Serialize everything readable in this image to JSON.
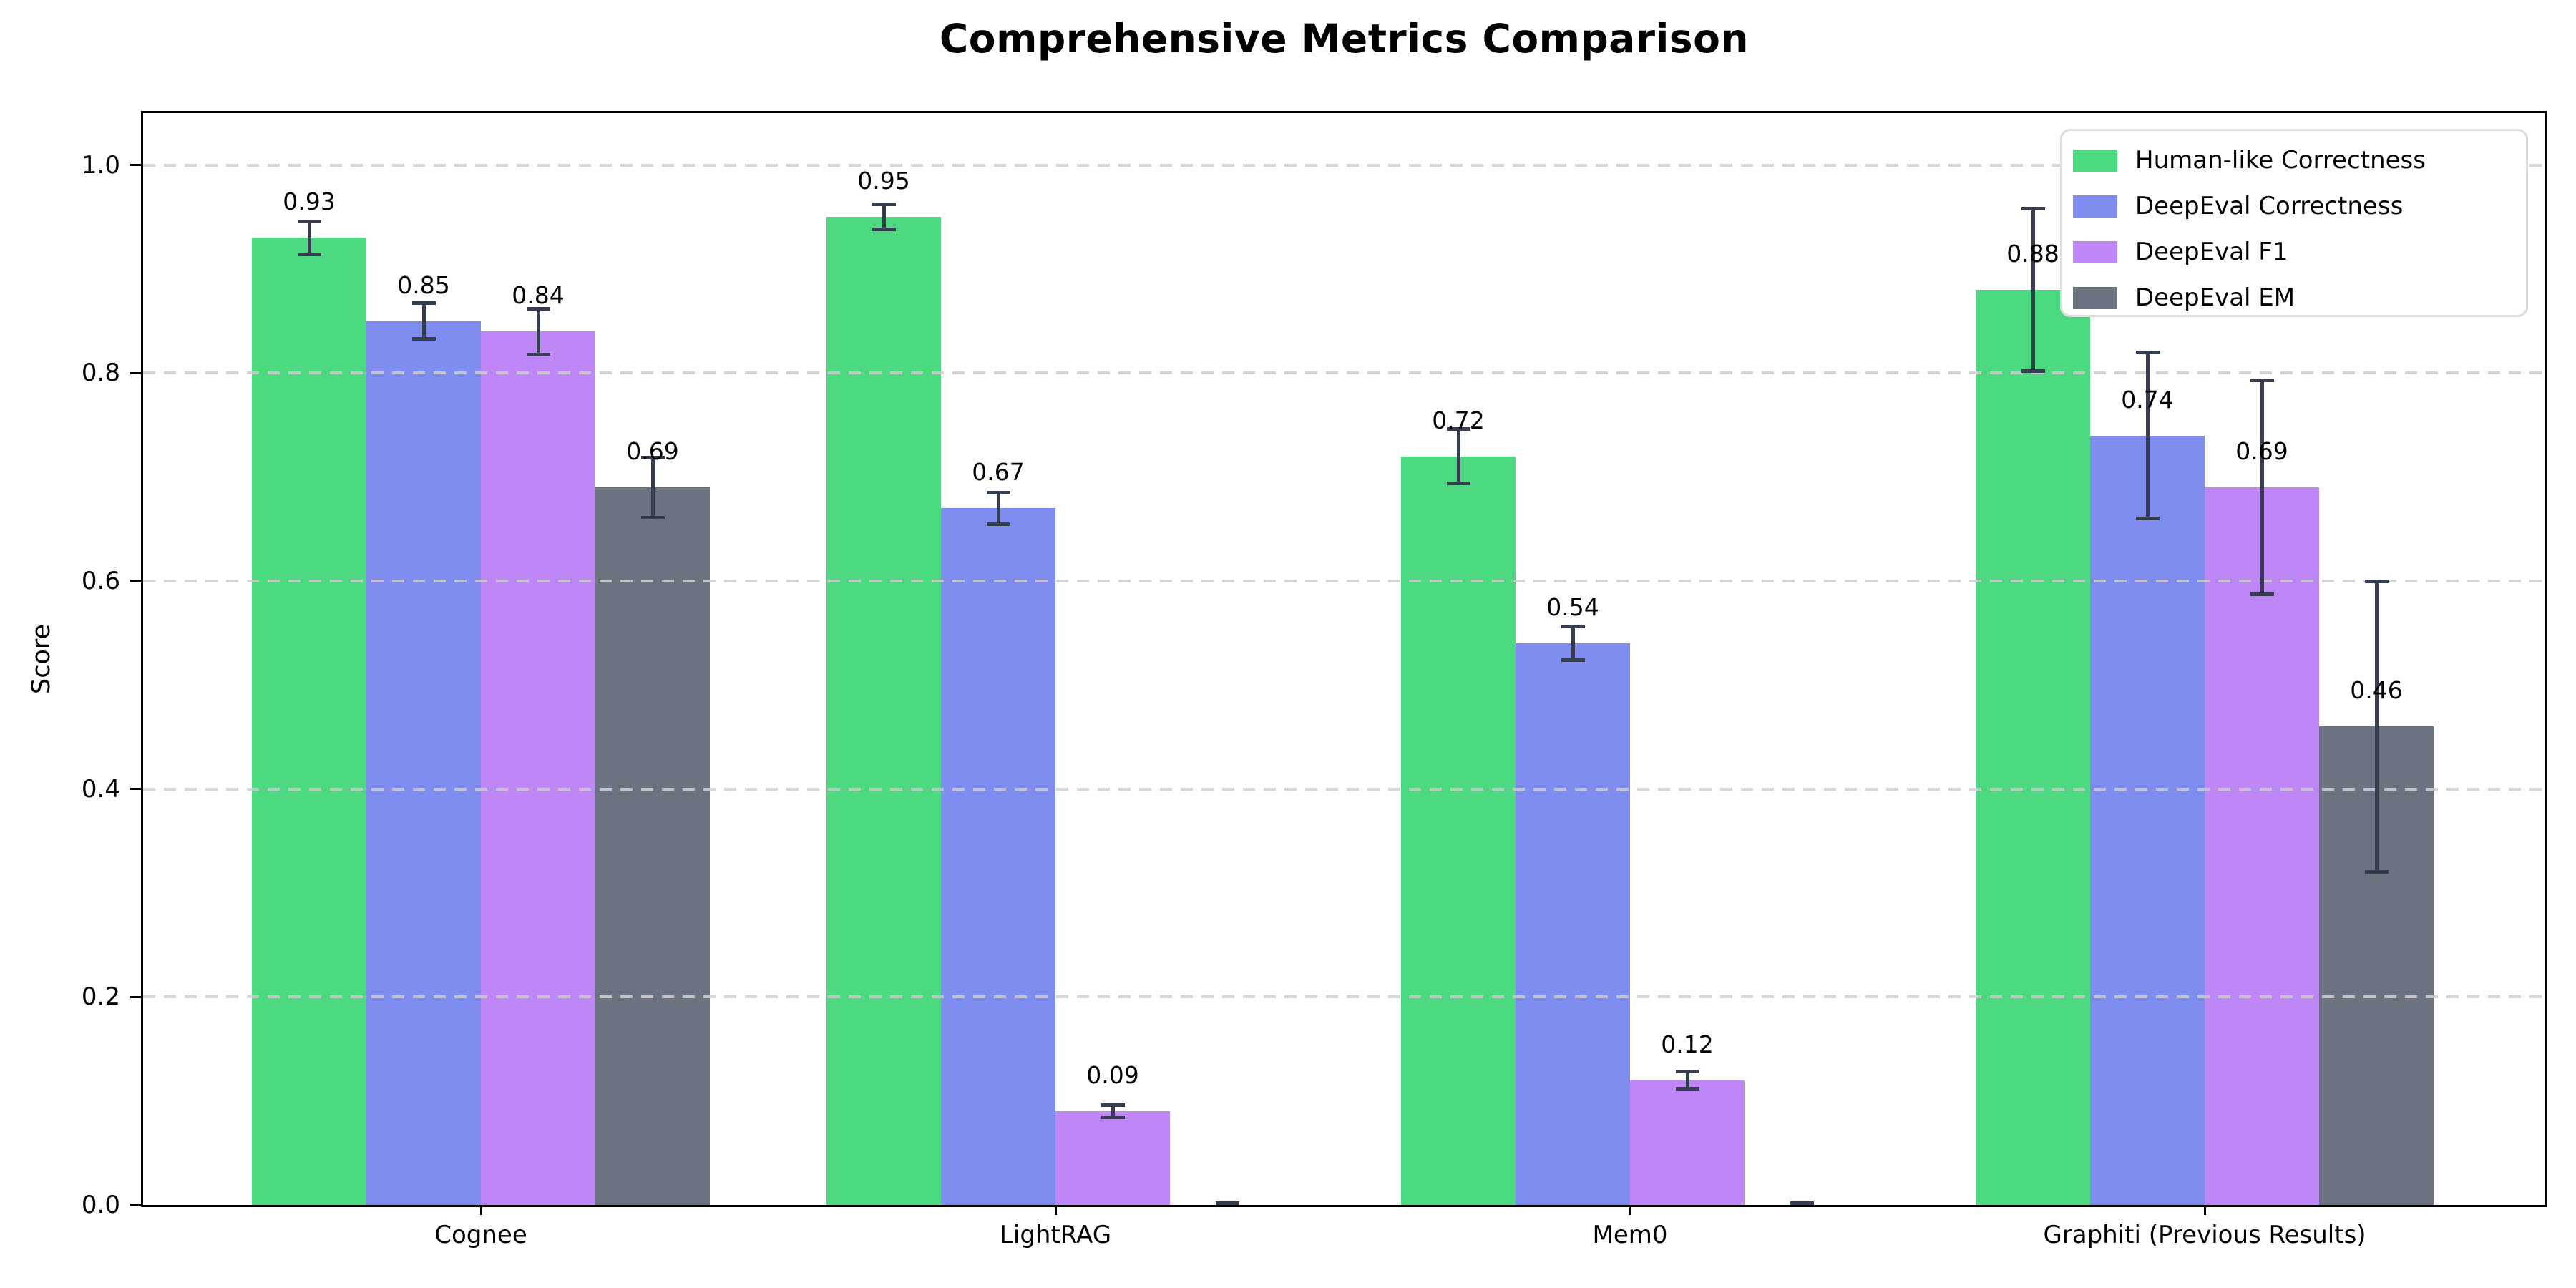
{
  "chart_data": {
    "type": "bar",
    "title": "Comprehensive Metrics Comparison",
    "ylabel": "Score",
    "xlabel": "",
    "categories": [
      "Cognee",
      "LightRAG",
      "Mem0",
      "Graphiti (Previous Results)"
    ],
    "series": [
      {
        "name": "Human-like Correctness",
        "color": "#4dd980",
        "values": [
          0.93,
          0.95,
          0.72,
          0.88
        ],
        "errors": [
          0.016,
          0.012,
          0.026,
          0.078
        ],
        "labels": [
          "0.93",
          "0.95",
          "0.72",
          "0.88"
        ]
      },
      {
        "name": "DeepEval Correctness",
        "color": "#7f8cf0",
        "values": [
          0.85,
          0.67,
          0.54,
          0.74
        ],
        "errors": [
          0.017,
          0.015,
          0.016,
          0.08
        ],
        "labels": [
          "0.85",
          "0.67",
          "0.54",
          "0.74"
        ]
      },
      {
        "name": "DeepEval F1",
        "color": "#be87f5",
        "values": [
          0.84,
          0.09,
          0.12,
          0.69
        ],
        "errors": [
          0.022,
          0.006,
          0.008,
          0.103
        ],
        "labels": [
          "0.84",
          "0.09",
          "0.12",
          "0.69"
        ]
      },
      {
        "name": "DeepEval EM",
        "color": "#6b7380",
        "values": [
          0.69,
          0.0,
          0.0,
          0.46
        ],
        "errors": [
          0.029,
          0.002,
          0.002,
          0.14
        ],
        "labels": [
          "0.69",
          "",
          "",
          "0.46"
        ]
      }
    ],
    "yticks": [
      "0.0",
      "0.2",
      "0.4",
      "0.6",
      "0.8",
      "1.0"
    ],
    "ylim": [
      0,
      1.05
    ],
    "grid": "horizontal-dashed",
    "legend_position": "upper-right",
    "errorbar_color": "#343e50"
  }
}
